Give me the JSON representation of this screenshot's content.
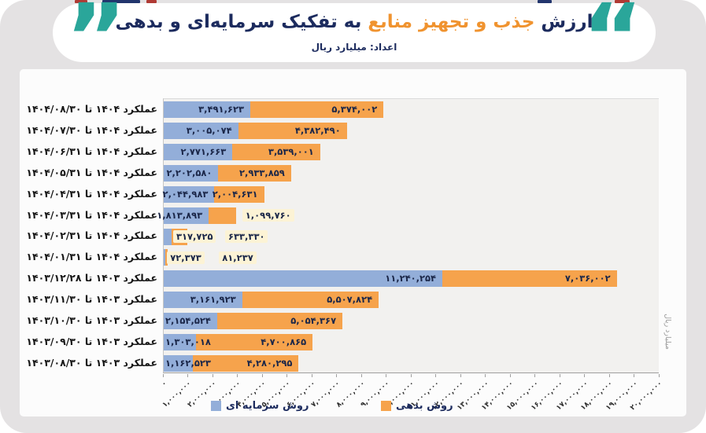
{
  "header": {
    "quote_left": "”",
    "quote_right": "“",
    "title_part1": "ارزش",
    "title_highlight": " جذب و تجهیز منابع ",
    "title_part2": "به تفکیک سرمایه‌ای و بدهی",
    "subtitle": "اعداد: میلیارد ریال"
  },
  "axis_title_right": "میلیارد ریال",
  "colors": {
    "capital_bar": "#93aed9",
    "debt_bar": "#f6a34c",
    "title_navy": "#1c2b5e",
    "title_orange": "#f0932f",
    "quote_teal": "#2aa69a",
    "label_bg_cream": "#fcf3d5",
    "frame_gray": "#e4e2e3"
  },
  "chart_data": {
    "type": "bar",
    "orientation": "horizontal-stacked",
    "title": "ارزش جذب و تجهیز منابع به تفکیک سرمایه‌ای و بدهی",
    "subtitle": "اعداد: میلیارد ریال",
    "unit_label": "میلیارد ریال",
    "legend_position": "bottom",
    "grid": false,
    "xlim": [
      0,
      20000000
    ],
    "x_tick_interval": 1000000,
    "x_tick_labels": [
      "۰",
      "۱,۰۰۰,۰۰۰",
      "۲,۰۰۰,۰۰۰",
      "۳,۰۰۰,۰۰۰",
      "۴,۰۰۰,۰۰۰",
      "۵,۰۰۰,۰۰۰",
      "۶,۰۰۰,۰۰۰",
      "۷,۰۰۰,۰۰۰",
      "۸,۰۰۰,۰۰۰",
      "۹,۰۰۰,۰۰۰",
      "۱۰,۰۰۰,۰۰۰",
      "۱۱,۰۰۰,۰۰۰",
      "۱۲,۰۰۰,۰۰۰",
      "۱۳,۰۰۰,۰۰۰",
      "۱۴,۰۰۰,۰۰۰",
      "۱۵,۰۰۰,۰۰۰",
      "۱۶,۰۰۰,۰۰۰",
      "۱۷,۰۰۰,۰۰۰",
      "۱۸,۰۰۰,۰۰۰",
      "۱۹,۰۰۰,۰۰۰",
      "۲۰,۰۰۰,۰۰۰"
    ],
    "categories": [
      "عملکرد ۱۴۰۴ تا ۱۴۰۴/۰۸/۳۰",
      "عملکرد ۱۴۰۴ تا ۱۴۰۴/۰۷/۳۰",
      "عملکرد ۱۴۰۴ تا ۱۴۰۴/۰۶/۳۱",
      "عملکرد ۱۴۰۴ تا ۱۴۰۴/۰۵/۳۱",
      "عملکرد ۱۴۰۴ تا ۱۴۰۴/۰۴/۳۱",
      "عملکرد ۱۴۰۴ تا ۱۴۰۴/۰۳/۳۱",
      "عملکرد ۱۴۰۴ تا ۱۴۰۴/۰۲/۳۱",
      "عملکرد ۱۴۰۴ تا ۱۴۰۴/۰۱/۳۱",
      "عملکرد ۱۴۰۳ تا ۱۴۰۳/۱۲/۲۸",
      "عملکرد ۱۴۰۳ تا ۱۴۰۳/۱۱/۳۰",
      "عملکرد ۱۴۰۳ تا ۱۴۰۳/۱۰/۳۰",
      "عملکرد ۱۴۰۳ تا ۱۴۰۳/۰۹/۳۰",
      "عملکرد ۱۴۰۳ تا ۱۴۰۳/۰۸/۳۰"
    ],
    "series": [
      {
        "name": "روش سرمایه ای",
        "color": "#93aed9",
        "values": [
          3491623,
          3005074,
          2771663,
          2202580,
          2044983,
          1813893,
          317725,
          72373,
          11240254,
          3161923,
          2154524,
          1303018,
          1162523
        ],
        "labels_fa": [
          "۳,۴۹۱,۶۲۳",
          "۳,۰۰۵,۰۷۴",
          "۲,۷۷۱,۶۶۳",
          "۲,۲۰۲,۵۸۰",
          "۲,۰۴۴,۹۸۳",
          "۱,۸۱۳,۸۹۳",
          "۳۱۷,۷۲۵",
          "۷۲,۳۷۳",
          "۱۱,۲۴۰,۲۵۴",
          "۳,۱۶۱,۹۲۳",
          "۲,۱۵۴,۵۲۴",
          "۱,۳۰۳,۰۱۸",
          "۱,۱۶۲,۵۲۳"
        ]
      },
      {
        "name": "روش بدهی",
        "color": "#f6a34c",
        "values": [
          5374002,
          4382490,
          3539001,
          2933859,
          2004631,
          1099760,
          633330,
          81237,
          7036002,
          5507824,
          5054367,
          4700865,
          4280295
        ],
        "labels_fa": [
          "۵,۳۷۴,۰۰۲",
          "۴,۳۸۲,۴۹۰",
          "۳,۵۳۹,۰۰۱",
          "۲,۹۳۳,۸۵۹",
          "۲,۰۰۴,۶۳۱",
          "۱,۰۹۹,۷۶۰",
          "۶۳۳,۳۳۰",
          "۸۱,۲۳۷",
          "۷,۰۳۶,۰۰۲",
          "۵,۵۰۷,۸۲۴",
          "۵,۰۵۴,۳۶۷",
          "۴,۷۰۰,۸۶۵",
          "۴,۲۸۰,۲۹۵"
        ]
      }
    ],
    "label_modes": [
      [
        "in",
        "in"
      ],
      [
        "in",
        "in"
      ],
      [
        "in",
        "in"
      ],
      [
        "in",
        "in"
      ],
      [
        "in",
        "in"
      ],
      [
        "in",
        "out"
      ],
      [
        "out",
        "out"
      ],
      [
        "out",
        "out"
      ],
      [
        "in",
        "in"
      ],
      [
        "in",
        "in"
      ],
      [
        "in",
        "in"
      ],
      [
        "in",
        "in"
      ],
      [
        "in",
        "in"
      ]
    ]
  }
}
